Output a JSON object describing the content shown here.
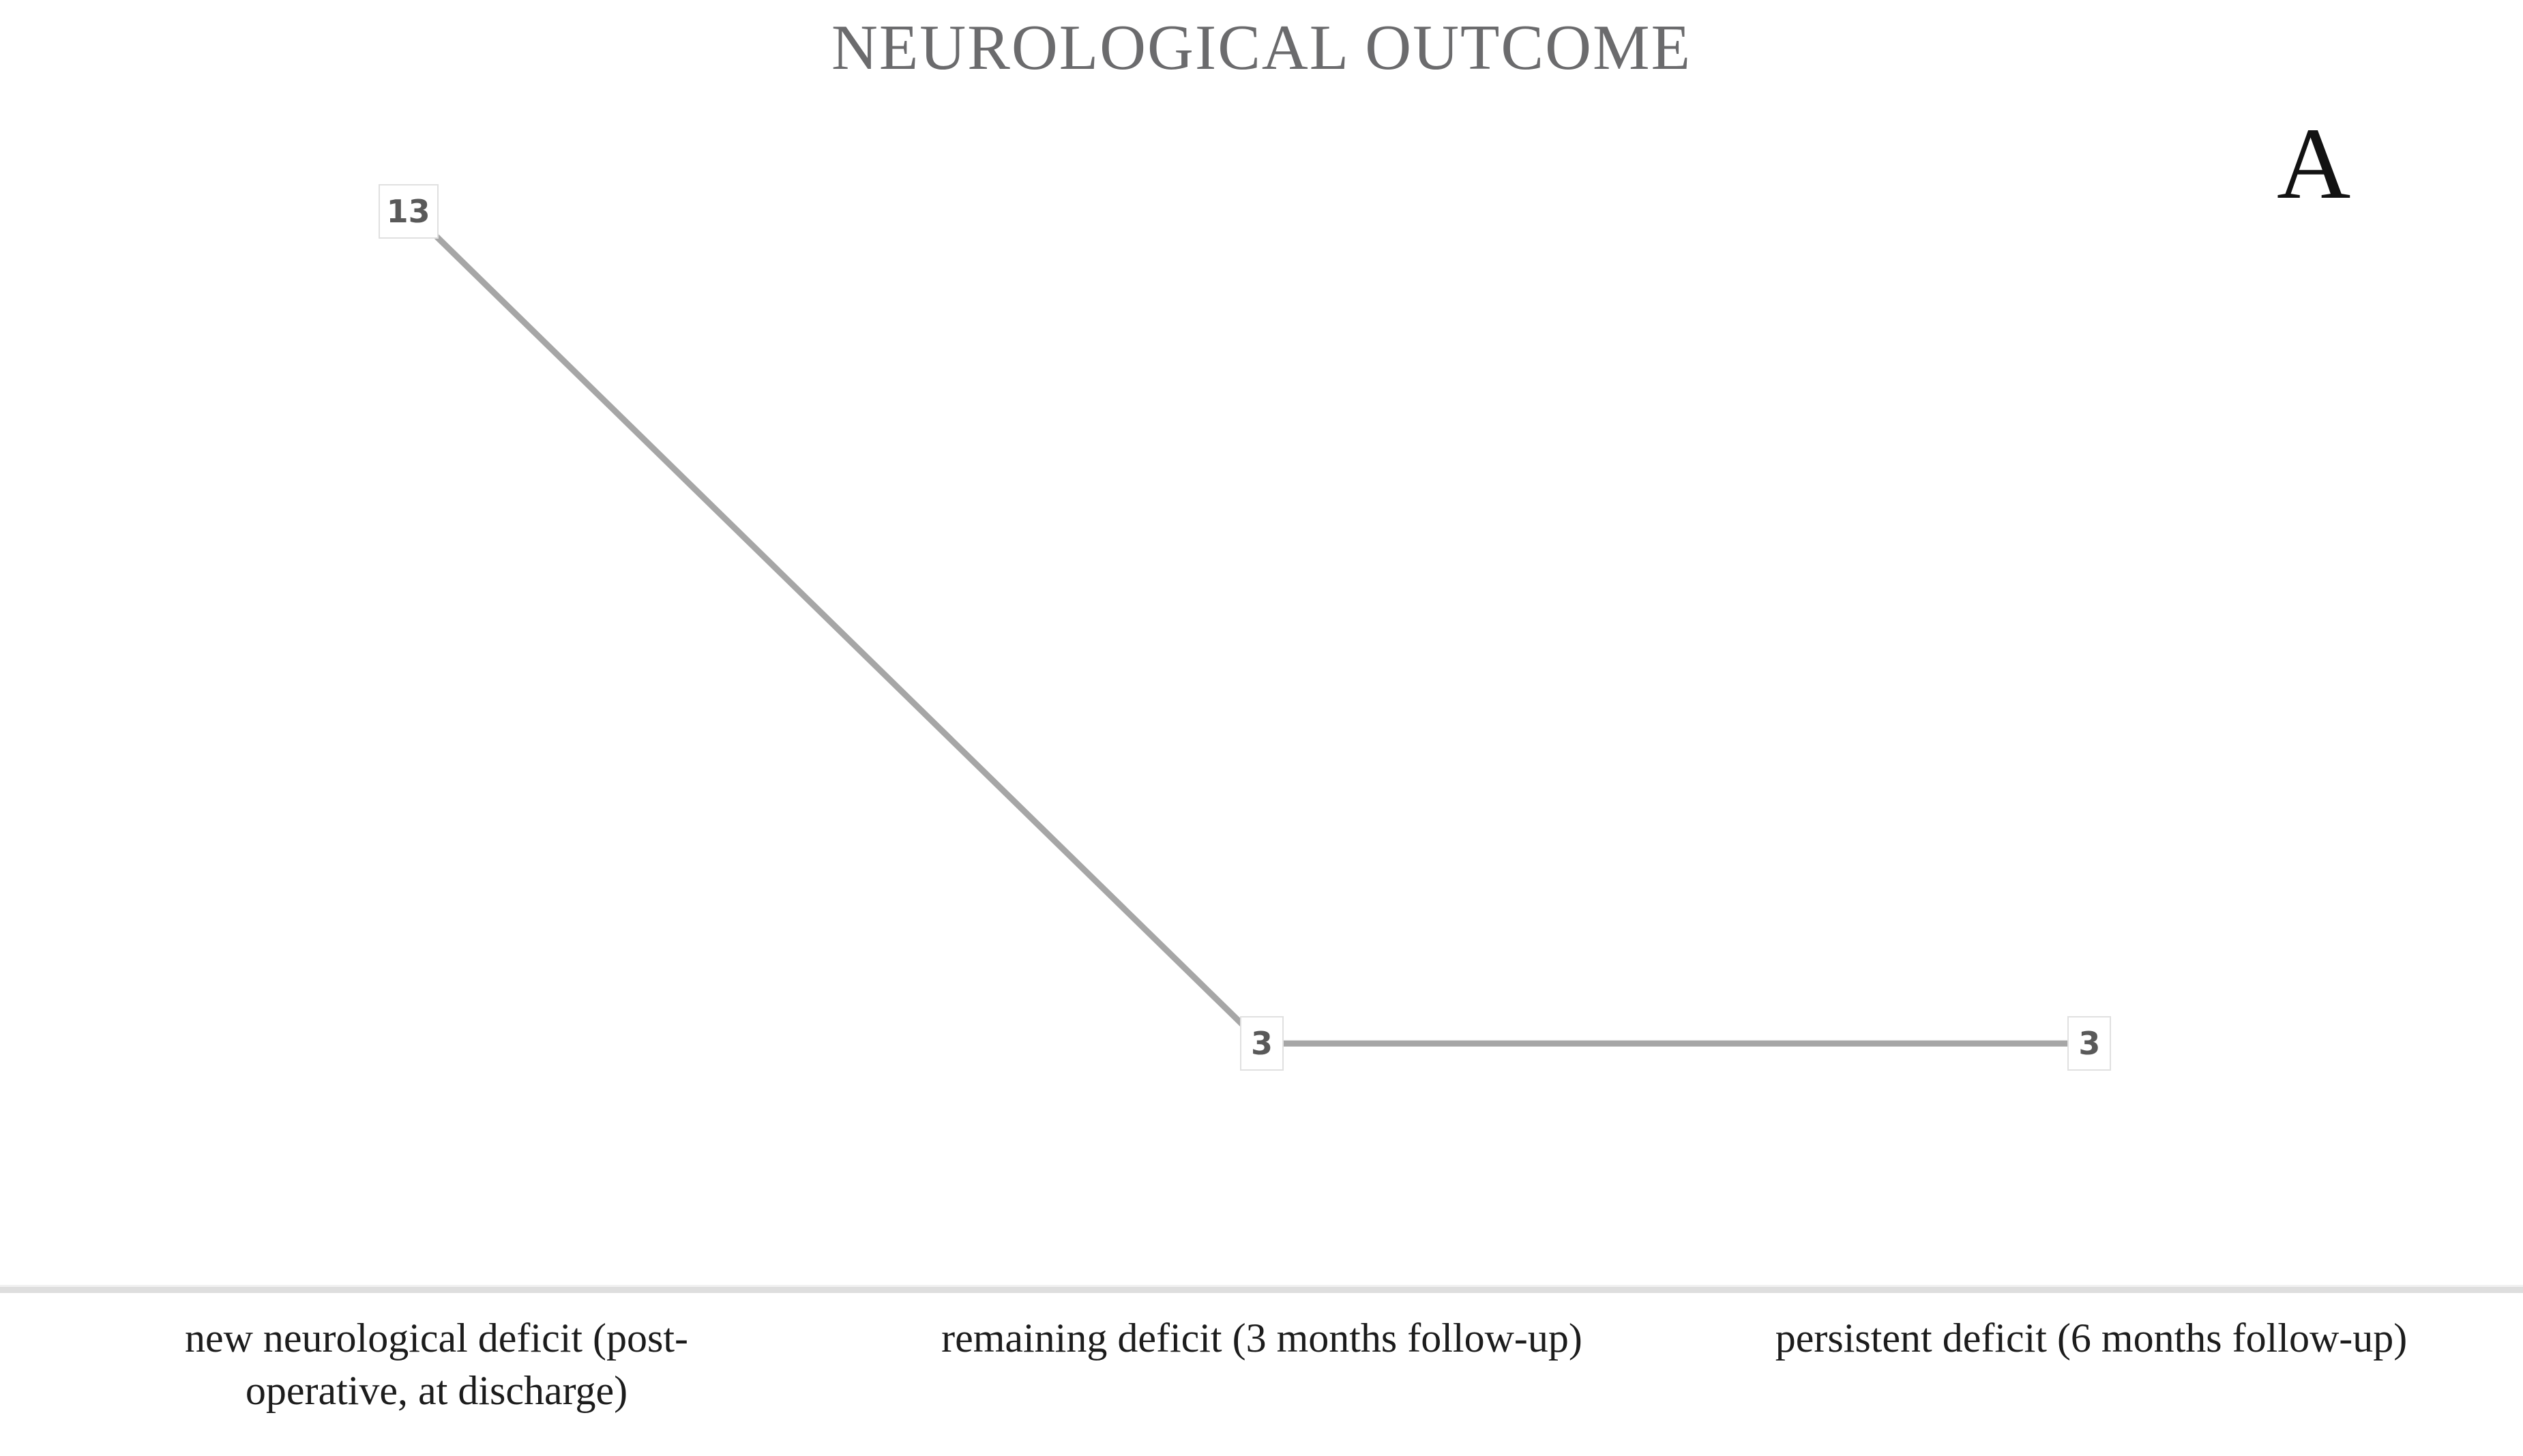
{
  "chart_data": {
    "type": "line",
    "title": "NEUROLOGICAL OUTCOME",
    "panel_label": "A",
    "categories": [
      "new neurological deficit (post-operative, at discharge)",
      "remaining deficit (3 months follow-up)",
      "persistent deficit (6 months follow-up)"
    ],
    "values": [
      13,
      3,
      3
    ],
    "xlabel": "",
    "ylabel": "",
    "ylim": [
      0,
      14
    ],
    "grid": false,
    "legend": false,
    "data_labels_shown": true,
    "line_color": "#a6a6a6",
    "data_label_text_color": "#595959",
    "data_label_box_border_color": "#e0e0e0",
    "title_color": "#6b6b6d",
    "axis_line_color": "#dedede",
    "category_label_color": "#1c1c1c"
  },
  "x_axis": {
    "labels": [
      {
        "line1": "new neurological deficit (post-",
        "line2": "operative, at discharge)"
      },
      {
        "line1": "remaining deficit (3 months follow-up)",
        "line2": ""
      },
      {
        "line1": "persistent deficit (6 months follow-up)",
        "line2": ""
      }
    ]
  }
}
